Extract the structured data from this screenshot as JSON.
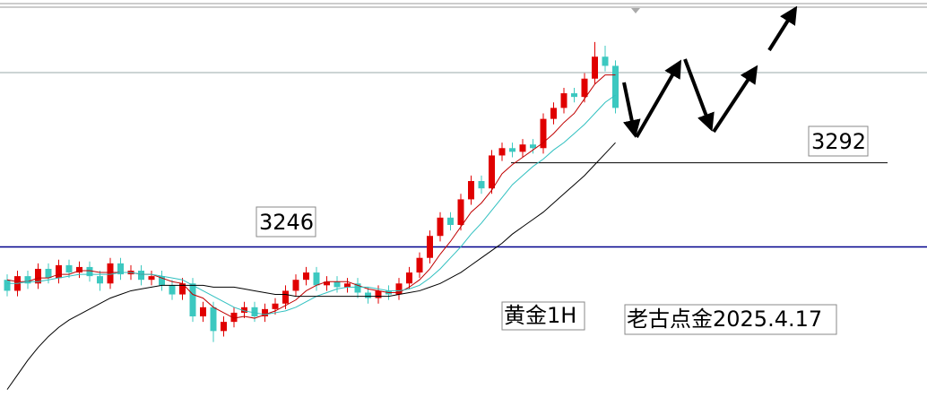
{
  "chart_data": {
    "type": "candlestick",
    "open": [
      3228,
      3222,
      3230,
      3226,
      3234,
      3229,
      3236,
      3232,
      3235,
      3230,
      3226,
      3237,
      3231,
      3233,
      3228,
      3230,
      3225,
      3220,
      3226,
      3208,
      3213,
      3200,
      3205,
      3210,
      3213,
      3208,
      3212,
      3215,
      3222,
      3228,
      3232,
      3225,
      3227,
      3224,
      3226,
      3221,
      3218,
      3222,
      3220,
      3226,
      3232,
      3240,
      3252,
      3262,
      3258,
      3272,
      3282,
      3278,
      3296,
      3300,
      3298,
      3302,
      3300,
      3316,
      3322,
      3330,
      3328,
      3338,
      3350,
      3345
    ],
    "high": [
      3231,
      3233,
      3233,
      3237,
      3237,
      3239,
      3239,
      3238,
      3238,
      3233,
      3240,
      3240,
      3236,
      3236,
      3233,
      3233,
      3228,
      3229,
      3229,
      3216,
      3216,
      3208,
      3213,
      3216,
      3216,
      3215,
      3218,
      3225,
      3231,
      3235,
      3235,
      3230,
      3230,
      3229,
      3229,
      3224,
      3225,
      3225,
      3229,
      3235,
      3243,
      3255,
      3265,
      3265,
      3275,
      3285,
      3285,
      3299,
      3303,
      3303,
      3305,
      3305,
      3319,
      3325,
      3333,
      3333,
      3341,
      3358,
      3356,
      3348
    ],
    "low": [
      3219,
      3219,
      3223,
      3223,
      3226,
      3226,
      3229,
      3229,
      3227,
      3222,
      3223,
      3228,
      3228,
      3225,
      3225,
      3222,
      3217,
      3217,
      3205,
      3205,
      3194,
      3197,
      3202,
      3207,
      3205,
      3205,
      3209,
      3212,
      3219,
      3225,
      3222,
      3222,
      3221,
      3221,
      3218,
      3215,
      3215,
      3217,
      3217,
      3223,
      3229,
      3237,
      3249,
      3255,
      3255,
      3269,
      3275,
      3275,
      3293,
      3295,
      3295,
      3297,
      3297,
      3313,
      3319,
      3325,
      3325,
      3335,
      3342,
      3319
    ],
    "close": [
      3222,
      3230,
      3226,
      3234,
      3229,
      3236,
      3232,
      3235,
      3230,
      3226,
      3237,
      3231,
      3233,
      3228,
      3230,
      3225,
      3220,
      3226,
      3208,
      3213,
      3200,
      3205,
      3210,
      3213,
      3208,
      3212,
      3215,
      3222,
      3228,
      3232,
      3225,
      3227,
      3224,
      3226,
      3221,
      3218,
      3222,
      3220,
      3226,
      3232,
      3240,
      3252,
      3262,
      3258,
      3272,
      3282,
      3278,
      3296,
      3300,
      3298,
      3302,
      3300,
      3316,
      3322,
      3330,
      3328,
      3338,
      3350,
      3345,
      3322
    ],
    "up_color": "#e00000",
    "down_color": "#3cc8c0",
    "lines": [
      {
        "color": "#c00000",
        "values": [
          3228,
          3227,
          3227,
          3229,
          3229,
          3231,
          3231,
          3233,
          3233,
          3232,
          3232,
          3232,
          3232,
          3231,
          3231,
          3229,
          3227,
          3226,
          3220,
          3218,
          3213,
          3210,
          3207,
          3208,
          3207,
          3209,
          3211,
          3214,
          3217,
          3222,
          3225,
          3227,
          3227,
          3227,
          3225,
          3223,
          3222,
          3221,
          3221,
          3224,
          3228,
          3234,
          3242,
          3249,
          3257,
          3265,
          3270,
          3277,
          3286,
          3291,
          3295,
          3299,
          3303,
          3308,
          3314,
          3319,
          3327,
          3335,
          3340,
          3340
        ]
      },
      {
        "color": "#30c0c0",
        "values": [
          3226,
          3226,
          3227,
          3227,
          3228,
          3229,
          3230,
          3231,
          3231,
          3231,
          3231,
          3232,
          3232,
          3231,
          3231,
          3230,
          3229,
          3228,
          3225,
          3222,
          3219,
          3216,
          3213,
          3211,
          3210,
          3209,
          3210,
          3211,
          3213,
          3216,
          3219,
          3221,
          3223,
          3224,
          3224,
          3224,
          3223,
          3222,
          3222,
          3223,
          3225,
          3229,
          3234,
          3240,
          3246,
          3253,
          3259,
          3266,
          3273,
          3280,
          3285,
          3290,
          3294,
          3299,
          3303,
          3308,
          3313,
          3319,
          3325,
          3329
        ]
      },
      {
        "color": "#000000",
        "values": [
          3168,
          3176,
          3184,
          3191,
          3197,
          3202,
          3206,
          3209,
          3212,
          3215,
          3218,
          3220,
          3222,
          3223,
          3224,
          3225,
          3225,
          3225,
          3225,
          3225,
          3224,
          3224,
          3224,
          3223,
          3222,
          3221,
          3220,
          3220,
          3219,
          3219,
          3219,
          3219,
          3219,
          3219,
          3219,
          3219,
          3219,
          3219,
          3220,
          3221,
          3222,
          3224,
          3226,
          3229,
          3232,
          3236,
          3240,
          3244,
          3248,
          3253,
          3257,
          3261,
          3265,
          3270,
          3275,
          3280,
          3285,
          3291,
          3297,
          3303
        ]
      }
    ],
    "levels": [
      3246,
      3292
    ],
    "level_colors": [
      "#00008b",
      "#000000"
    ],
    "ylim": [
      3159,
      3381
    ],
    "annotations": [
      "黄金1H",
      "老古点金2025.4.17"
    ]
  }
}
